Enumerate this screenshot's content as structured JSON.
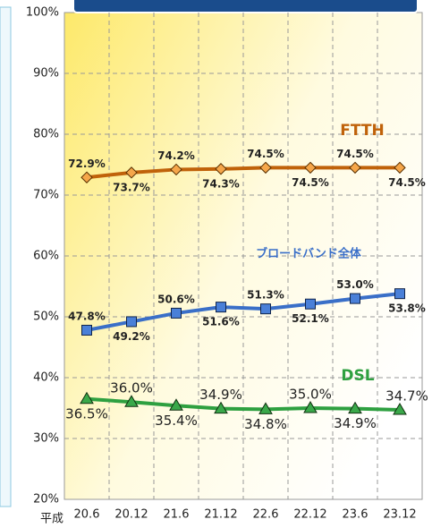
{
  "chart_data": {
    "type": "line",
    "x_axis_label": "平成",
    "categories": [
      "20.6",
      "20.12",
      "21.6",
      "21.12",
      "22.6",
      "22.12",
      "23.6",
      "23.12"
    ],
    "ylim": [
      20,
      100
    ],
    "yticks": [
      {
        "value": 20,
        "label": "20%"
      },
      {
        "value": 30,
        "label": "30%"
      },
      {
        "value": 40,
        "label": "40%"
      },
      {
        "value": 50,
        "label": "50%"
      },
      {
        "value": 60,
        "label": "60%"
      },
      {
        "value": 70,
        "label": "70%"
      },
      {
        "value": 80,
        "label": "80%"
      },
      {
        "value": 90,
        "label": "90%"
      },
      {
        "value": 100,
        "label": "100%"
      }
    ],
    "grid": true,
    "series": [
      {
        "name": "FTTH",
        "color": "#c0620a",
        "marker": "diamond",
        "values": [
          72.9,
          73.7,
          74.2,
          74.3,
          74.5,
          74.5,
          74.5,
          74.5
        ],
        "value_labels": [
          "72.9%",
          "73.7%",
          "74.2%",
          "74.3%",
          "74.5%",
          "74.5%",
          "74.5%",
          "74.5%"
        ]
      },
      {
        "name": "ブロードバンド全体",
        "color": "#3a6fc8",
        "marker": "square",
        "values": [
          47.8,
          49.2,
          50.6,
          51.6,
          51.3,
          52.1,
          53.0,
          53.8
        ],
        "value_labels": [
          "47.8%",
          "49.2%",
          "50.6%",
          "51.6%",
          "51.3%",
          "52.1%",
          "53.0%",
          "53.8%"
        ]
      },
      {
        "name": "DSL",
        "color": "#2ea040",
        "marker": "triangle",
        "values": [
          36.5,
          36.0,
          35.4,
          34.9,
          34.8,
          35.0,
          34.9,
          34.7
        ],
        "value_labels": [
          "36.5%",
          "36.0%",
          "35.4%",
          "34.9%",
          "34.8%",
          "35.0%",
          "34.9%",
          "34.7%"
        ]
      }
    ]
  }
}
